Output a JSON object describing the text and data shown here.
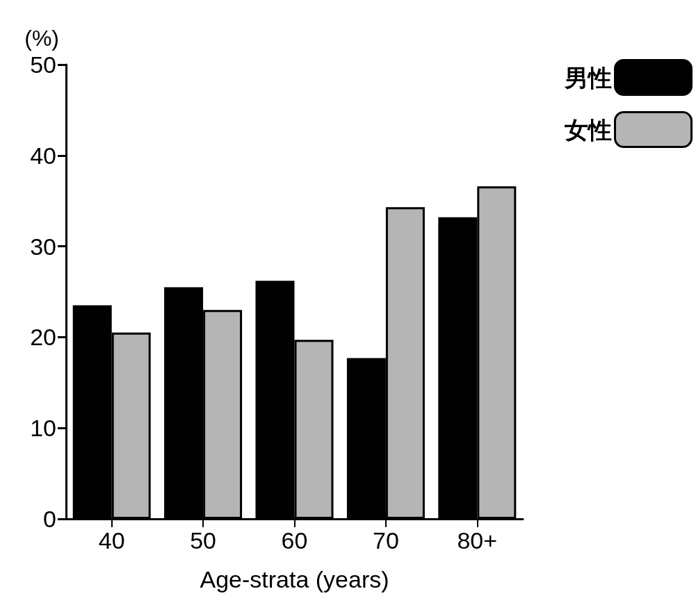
{
  "chart_data": {
    "type": "bar",
    "xlabel": "Age-strata (years)",
    "ylabel": "(%)",
    "categories": [
      "40",
      "50",
      "60",
      "70",
      "80+"
    ],
    "series": [
      {
        "name": "男性",
        "color": "#000000",
        "values": [
          23.5,
          25.5,
          26.2,
          17.7,
          33.2
        ]
      },
      {
        "name": "女性",
        "color": "#b5b5b5",
        "values": [
          20.5,
          23.0,
          19.7,
          34.3,
          36.6
        ]
      }
    ],
    "ylim": [
      0,
      50
    ],
    "yticks": [
      0,
      10,
      20,
      30,
      40,
      50
    ],
    "grid": false,
    "legend": "top right"
  }
}
